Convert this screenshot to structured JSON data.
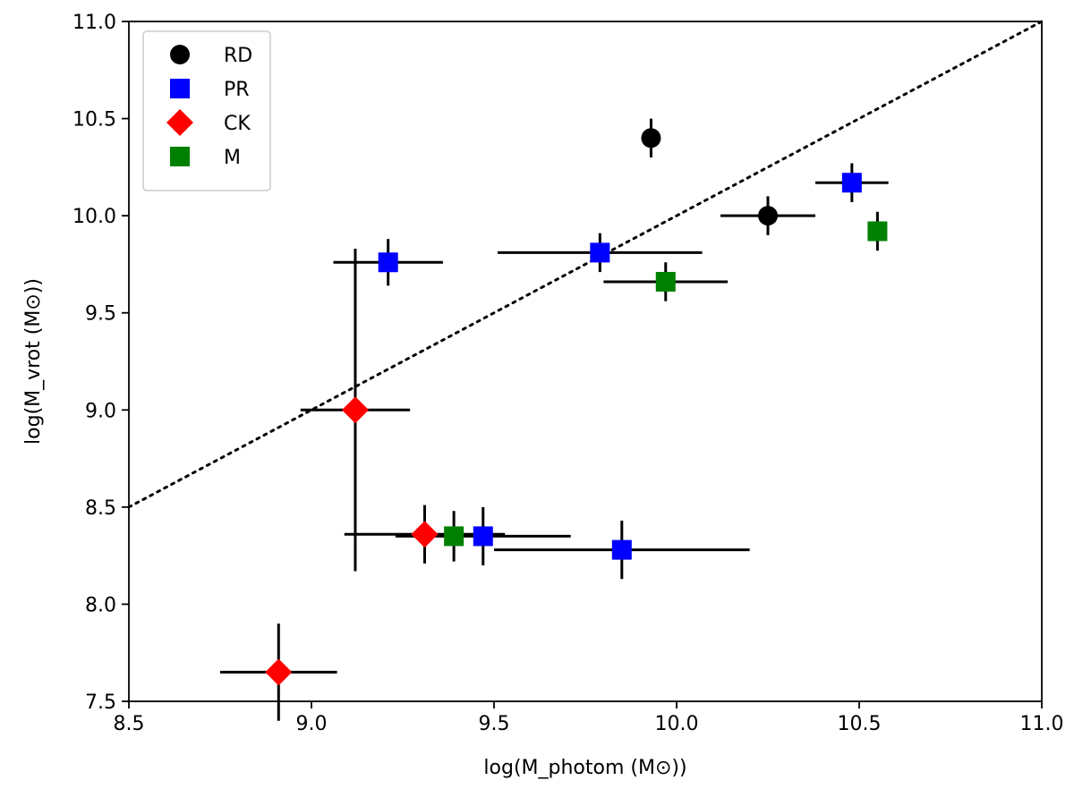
{
  "chart_data": {
    "type": "scatter",
    "title": "",
    "xlabel": "log(M_photom (M⊙))",
    "ylabel": "log(M_vrot  (M⊙))",
    "xlim": [
      8.5,
      11.0
    ],
    "ylim": [
      7.5,
      11.0
    ],
    "xticks": [
      8.5,
      9.0,
      9.5,
      10.0,
      10.5,
      11.0
    ],
    "yticks": [
      7.5,
      8.0,
      8.5,
      9.0,
      9.5,
      10.0,
      10.5,
      11.0
    ],
    "xtick_labels": [
      "8.5",
      "9.0",
      "9.5",
      "10.0",
      "10.5",
      "11.0"
    ],
    "ytick_labels": [
      "7.5",
      "8.0",
      "8.5",
      "9.0",
      "9.5",
      "10.0",
      "10.5",
      "11.0"
    ],
    "grid": false,
    "legend_position": "top-left",
    "reference_line": {
      "style": "dotted",
      "relation": "y = x",
      "color": "#000000"
    },
    "series": [
      {
        "name": "RD",
        "marker": "circle",
        "color": "#000000",
        "points": [
          {
            "x": 9.93,
            "y": 10.4,
            "xerr": 0.0,
            "yerr": 0.1
          },
          {
            "x": 10.25,
            "y": 10.0,
            "xerr": 0.13,
            "yerr": 0.1
          }
        ]
      },
      {
        "name": "PR",
        "marker": "square",
        "color": "#0000ff",
        "points": [
          {
            "x": 9.21,
            "y": 9.76,
            "xerr": 0.15,
            "yerr": 0.12
          },
          {
            "x": 9.79,
            "y": 9.81,
            "xerr": 0.28,
            "yerr": 0.1
          },
          {
            "x": 10.48,
            "y": 10.17,
            "xerr": 0.1,
            "yerr": 0.1
          },
          {
            "x": 9.47,
            "y": 8.35,
            "xerr": 0.24,
            "yerr": 0.15
          },
          {
            "x": 9.85,
            "y": 8.28,
            "xerr": 0.35,
            "yerr": 0.15
          }
        ]
      },
      {
        "name": "CK",
        "marker": "diamond",
        "color": "#ff0000",
        "points": [
          {
            "x": 9.12,
            "y": 9.0,
            "xerr": 0.15,
            "yerr": 0.83
          },
          {
            "x": 9.31,
            "y": 8.36,
            "xerr": 0.22,
            "yerr": 0.15
          },
          {
            "x": 8.91,
            "y": 7.65,
            "xerr": 0.16,
            "yerr": 0.25
          }
        ]
      },
      {
        "name": "M",
        "marker": "square",
        "color": "#008000",
        "points": [
          {
            "x": 9.97,
            "y": 9.66,
            "xerr": 0.17,
            "yerr": 0.1
          },
          {
            "x": 10.55,
            "y": 9.92,
            "xerr": 0.0,
            "yerr": 0.1
          },
          {
            "x": 9.39,
            "y": 8.35,
            "xerr": 0.0,
            "yerr": 0.13
          }
        ]
      }
    ]
  }
}
